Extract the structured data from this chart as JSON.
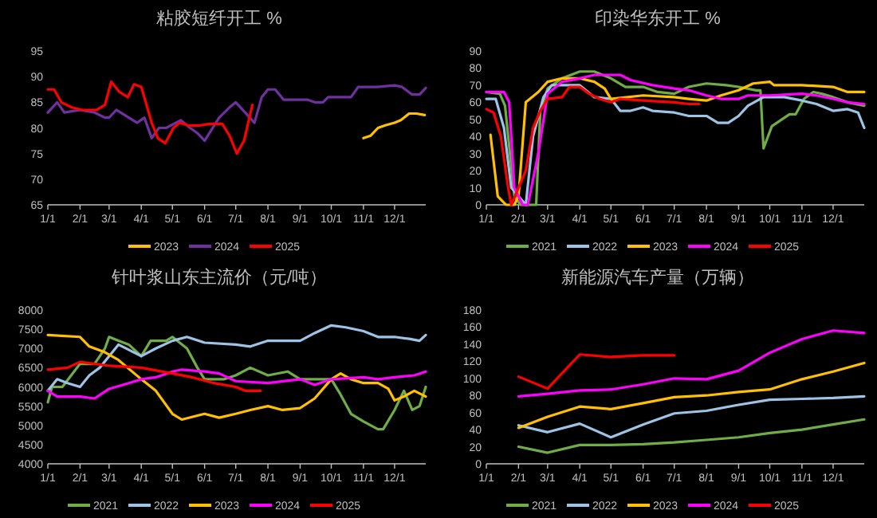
{
  "chart_data": [
    {
      "type": "line",
      "title": "粘胶短纤开工 %",
      "legend": "bottom",
      "xlim": [
        "--01-01",
        "--12-31"
      ],
      "xticks": [
        {
          "value": "--01-01",
          "label": "1/1"
        },
        {
          "value": "--02-01",
          "label": "2/1"
        },
        {
          "value": "--03-01",
          "label": "3/1"
        },
        {
          "value": "--04-01",
          "label": "4/1"
        },
        {
          "value": "--05-01",
          "label": "5/1"
        },
        {
          "value": "--06-01",
          "label": "6/1"
        },
        {
          "value": "--07-01",
          "label": "7/1"
        },
        {
          "value": "--08-01",
          "label": "8/1"
        },
        {
          "value": "--09-01",
          "label": "9/1"
        },
        {
          "value": "--10-01",
          "label": "10/1"
        },
        {
          "value": "--11-01",
          "label": "11/1"
        },
        {
          "value": "--12-01",
          "label": "12/1"
        }
      ],
      "ylim": [
        65,
        95
      ],
      "yticks": [
        65,
        70,
        75,
        80,
        85,
        90,
        95
      ],
      "series": [
        {
          "name": "2023",
          "color": "#ffc000",
          "x": [
            "--11-01",
            "--11-08",
            "--11-15",
            "--11-22",
            "--12-01",
            "--12-07",
            "--12-15",
            "--12-22",
            "--12-30"
          ],
          "values": [
            78,
            78.5,
            80,
            80.5,
            81,
            81.5,
            82.8,
            82.8,
            82.5
          ]
        },
        {
          "name": "2024",
          "color": "#7030a0",
          "x": [
            "--01-01",
            "--01-10",
            "--01-17",
            "--02-01",
            "--02-15",
            "--02-25",
            "--03-01",
            "--03-08",
            "--03-20",
            "--03-28",
            "--04-04",
            "--04-11",
            "--04-18",
            "--04-25",
            "--05-09",
            "--05-18",
            "--05-25",
            "--06-01",
            "--06-15",
            "--06-25",
            "--07-01",
            "--07-10",
            "--07-19",
            "--07-26",
            "--08-01",
            "--08-08",
            "--08-16",
            "--09-01",
            "--09-08",
            "--09-15",
            "--09-23",
            "--09-28",
            "--10-05",
            "--10-20",
            "--10-27",
            "--11-14",
            "--12-01",
            "--12-08",
            "--12-18",
            "--12-25",
            "--12-31"
          ],
          "values": [
            83,
            85,
            83,
            83.5,
            83,
            82,
            82,
            83.5,
            82,
            81,
            82,
            78,
            80,
            80,
            81.5,
            80,
            79,
            77.5,
            82,
            84,
            85,
            83,
            81,
            86,
            87.5,
            87.5,
            85.5,
            85.5,
            85.5,
            85,
            85,
            86,
            86,
            86,
            88,
            88,
            88.3,
            88,
            86.5,
            86.5,
            87.8
          ]
        },
        {
          "name": "2025",
          "color": "#ff0000",
          "x": [
            "--01-01",
            "--01-07",
            "--01-14",
            "--01-24",
            "--02-03",
            "--02-17",
            "--02-25",
            "--03-03",
            "--03-11",
            "--03-19",
            "--03-25",
            "--04-01",
            "--04-11",
            "--04-17",
            "--04-24",
            "--05-02",
            "--05-08",
            "--05-16",
            "--05-28",
            "--06-06",
            "--06-18",
            "--06-25",
            "--07-02",
            "--07-09",
            "--07-17"
          ],
          "values": [
            87.5,
            87.5,
            85,
            84,
            83.5,
            83.5,
            84.5,
            89,
            87,
            86,
            88.5,
            88,
            81,
            78,
            77,
            80,
            81,
            80.5,
            80.5,
            80.8,
            80.8,
            78.5,
            75,
            77.5,
            84.5
          ]
        }
      ]
    },
    {
      "type": "line",
      "title": "印染华东开工 %",
      "legend": "bottom",
      "xlim": [
        "--01-01",
        "--12-31"
      ],
      "xticks": [
        {
          "value": "--01-01",
          "label": "1/1"
        },
        {
          "value": "--02-01",
          "label": "2/1"
        },
        {
          "value": "--03-01",
          "label": "3/1"
        },
        {
          "value": "--04-01",
          "label": "4/1"
        },
        {
          "value": "--05-01",
          "label": "5/1"
        },
        {
          "value": "--06-01",
          "label": "6/1"
        },
        {
          "value": "--07-01",
          "label": "7/1"
        },
        {
          "value": "--08-01",
          "label": "8/1"
        },
        {
          "value": "--09-01",
          "label": "9/1"
        },
        {
          "value": "--10-01",
          "label": "10/1"
        },
        {
          "value": "--11-01",
          "label": "11/1"
        },
        {
          "value": "--12-01",
          "label": "12/1"
        }
      ],
      "ylim": [
        0,
        90
      ],
      "yticks": [
        0,
        10,
        20,
        30,
        40,
        50,
        60,
        70,
        80,
        90
      ],
      "series": [
        {
          "name": "2021",
          "color": "#70ad47",
          "x": [
            "--01-01",
            "--01-14",
            "--01-19",
            "--01-28",
            "--02-03",
            "--02-18",
            "--02-22",
            "--03-01",
            "--03-15",
            "--04-01",
            "--04-15",
            "--05-01",
            "--05-15",
            "--06-01",
            "--06-15",
            "--07-01",
            "--07-15",
            "--08-01",
            "--08-20",
            "--09-01",
            "--09-18",
            "--09-22",
            "--09-25",
            "--10-03",
            "--10-20",
            "--10-26",
            "--11-03",
            "--11-12",
            "--11-20",
            "--12-01",
            "--12-15",
            "--12-31"
          ],
          "values": [
            66,
            65,
            58,
            5,
            0,
            0,
            55,
            68,
            74,
            78,
            78,
            74,
            69,
            69,
            66,
            65,
            69,
            71,
            70,
            69,
            67,
            67,
            33,
            46,
            53,
            53,
            62,
            66,
            65,
            63,
            60,
            58
          ]
        },
        {
          "name": "2022",
          "color": "#9dc3e6",
          "x": [
            "--01-01",
            "--01-10",
            "--01-18",
            "--01-25",
            "--02-01",
            "--02-08",
            "--02-15",
            "--02-25",
            "--03-05",
            "--04-01",
            "--04-15",
            "--05-01",
            "--05-10",
            "--05-20",
            "--06-01",
            "--06-10",
            "--07-01",
            "--07-15",
            "--08-01",
            "--08-12",
            "--08-22",
            "--09-01",
            "--09-10",
            "--09-25",
            "--10-15",
            "--11-01",
            "--11-15",
            "--12-01",
            "--12-15",
            "--12-25",
            "--12-31"
          ],
          "values": [
            62,
            62,
            45,
            10,
            5,
            0,
            40,
            63,
            70,
            70,
            63,
            62,
            55,
            55,
            57,
            55,
            54,
            52,
            52,
            48,
            48,
            52,
            58,
            63,
            63,
            61,
            59,
            55,
            56,
            54,
            45
          ]
        },
        {
          "name": "2023",
          "color": "#ffc000",
          "x": [
            "--01-05",
            "--01-12",
            "--01-20",
            "--01-28",
            "--02-01",
            "--02-08",
            "--02-20",
            "--03-01",
            "--03-15",
            "--04-01",
            "--04-15",
            "--04-25",
            "--05-01",
            "--06-01",
            "--07-01",
            "--07-15",
            "--08-01",
            "--08-15",
            "--09-01",
            "--09-15",
            "--10-01",
            "--10-05",
            "--11-01",
            "--12-01",
            "--12-15",
            "--12-31"
          ],
          "values": [
            41,
            5,
            0,
            0,
            5,
            60,
            66,
            72,
            74,
            74,
            72,
            68,
            62,
            64,
            63,
            62,
            61,
            64,
            67,
            71,
            72,
            70,
            70,
            69,
            66,
            66
          ]
        },
        {
          "name": "2024",
          "color": "#ff00ff",
          "x": [
            "--01-01",
            "--01-18",
            "--01-23",
            "--01-28",
            "--02-05",
            "--02-10",
            "--02-20",
            "--03-01",
            "--03-15",
            "--04-01",
            "--04-15",
            "--05-01",
            "--05-10",
            "--05-20",
            "--06-10",
            "--07-01",
            "--07-15",
            "--08-01",
            "--08-15",
            "--09-01",
            "--09-10",
            "--10-01",
            "--11-01",
            "--11-15",
            "--12-01",
            "--12-15",
            "--12-31"
          ],
          "values": [
            66,
            66,
            60,
            10,
            0,
            0,
            30,
            65,
            72,
            74,
            76,
            76,
            76,
            73,
            70,
            68,
            67,
            64,
            62,
            62,
            64,
            64,
            65,
            64,
            62,
            60,
            59
          ]
        },
        {
          "name": "2025",
          "color": "#ff0000",
          "x": [
            "--01-01",
            "--01-08",
            "--01-15",
            "--01-22",
            "--01-25",
            "--02-01",
            "--02-08",
            "--02-15",
            "--02-22",
            "--03-01",
            "--03-15",
            "--03-22",
            "--04-01",
            "--04-10",
            "--04-20",
            "--05-01",
            "--05-10",
            "--06-01",
            "--07-01",
            "--07-15",
            "--07-25"
          ],
          "values": [
            56,
            54,
            40,
            10,
            0,
            10,
            20,
            45,
            55,
            62,
            63,
            69,
            69,
            65,
            62,
            60,
            62,
            61,
            60,
            59,
            59
          ]
        }
      ]
    },
    {
      "type": "line",
      "title": "针叶浆山东主流价（元/吨）",
      "legend": "bottom",
      "xlim": [
        "--01-01",
        "--12-31"
      ],
      "xticks": [
        {
          "value": "--01-01",
          "label": "1/1"
        },
        {
          "value": "--02-01",
          "label": "2/1"
        },
        {
          "value": "--03-01",
          "label": "3/1"
        },
        {
          "value": "--04-01",
          "label": "4/1"
        },
        {
          "value": "--05-01",
          "label": "5/1"
        },
        {
          "value": "--06-01",
          "label": "6/1"
        },
        {
          "value": "--07-01",
          "label": "7/1"
        },
        {
          "value": "--08-01",
          "label": "8/1"
        },
        {
          "value": "--09-01",
          "label": "9/1"
        },
        {
          "value": "--10-01",
          "label": "10/1"
        },
        {
          "value": "--11-01",
          "label": "11/1"
        },
        {
          "value": "--12-01",
          "label": "12/1"
        }
      ],
      "ylim": [
        4000,
        8000
      ],
      "yticks": [
        4000,
        4500,
        5000,
        5500,
        6000,
        6500,
        7000,
        7500,
        8000
      ],
      "series": [
        {
          "name": "2021",
          "color": "#70ad47",
          "x": [
            "--01-01",
            "--01-05",
            "--01-15",
            "--02-01",
            "--02-15",
            "--02-25",
            "--03-01",
            "--03-10",
            "--03-20",
            "--04-01",
            "--04-10",
            "--04-25",
            "--05-01",
            "--05-15",
            "--05-25",
            "--06-01",
            "--06-20",
            "--07-01",
            "--07-15",
            "--08-01",
            "--08-20",
            "--09-01",
            "--09-15",
            "--10-01",
            "--10-10",
            "--10-20",
            "--11-01",
            "--11-15",
            "--11-20",
            "--12-01",
            "--12-10",
            "--12-18",
            "--12-25",
            "--12-31"
          ],
          "values": [
            5600,
            6000,
            6000,
            6600,
            6600,
            7000,
            7300,
            7200,
            7100,
            6800,
            7200,
            7200,
            7300,
            7000,
            6500,
            6200,
            6200,
            6300,
            6500,
            6300,
            6400,
            6200,
            6200,
            6200,
            5800,
            5300,
            5100,
            4900,
            4900,
            5400,
            5900,
            5400,
            5500,
            6000
          ]
        },
        {
          "name": "2022",
          "color": "#9dc3e6",
          "x": [
            "--01-01",
            "--01-10",
            "--01-20",
            "--02-01",
            "--02-10",
            "--02-20",
            "--03-01",
            "--03-10",
            "--04-01",
            "--04-15",
            "--05-01",
            "--05-15",
            "--06-01",
            "--07-01",
            "--07-15",
            "--08-01",
            "--09-01",
            "--09-15",
            "--10-01",
            "--10-15",
            "--11-01",
            "--11-15",
            "--12-01",
            "--12-15",
            "--12-25",
            "--12-31"
          ],
          "values": [
            5900,
            6200,
            6100,
            6000,
            6300,
            6500,
            6800,
            7100,
            6800,
            7000,
            7200,
            7300,
            7150,
            7100,
            7050,
            7200,
            7200,
            7400,
            7600,
            7550,
            7450,
            7300,
            7300,
            7250,
            7200,
            7350
          ]
        },
        {
          "name": "2023",
          "color": "#ffc000",
          "x": [
            "--01-01",
            "--02-01",
            "--02-10",
            "--02-25",
            "--03-10",
            "--04-01",
            "--04-15",
            "--05-01",
            "--05-10",
            "--06-01",
            "--06-15",
            "--07-01",
            "--07-15",
            "--08-01",
            "--08-15",
            "--09-01",
            "--09-15",
            "--10-01",
            "--10-10",
            "--10-20",
            "--11-01",
            "--11-15",
            "--11-25",
            "--12-01",
            "--12-10",
            "--12-20",
            "--12-31"
          ],
          "values": [
            7350,
            7300,
            7050,
            6900,
            6700,
            6200,
            5900,
            5300,
            5150,
            5300,
            5200,
            5300,
            5400,
            5500,
            5400,
            5450,
            5700,
            6200,
            6350,
            6200,
            6100,
            6100,
            5950,
            5650,
            5750,
            5900,
            5750
          ]
        },
        {
          "name": "2024",
          "color": "#ff00ff",
          "x": [
            "--01-01",
            "--01-10",
            "--02-01",
            "--02-15",
            "--03-01",
            "--03-20",
            "--04-01",
            "--04-15",
            "--05-01",
            "--05-10",
            "--06-01",
            "--06-15",
            "--07-01",
            "--08-01",
            "--09-01",
            "--09-15",
            "--10-01",
            "--11-01",
            "--11-15",
            "--12-01",
            "--12-20",
            "--12-31"
          ],
          "values": [
            5900,
            5750,
            5750,
            5700,
            5950,
            6100,
            6200,
            6250,
            6400,
            6450,
            6400,
            6350,
            6150,
            6100,
            6200,
            6050,
            6200,
            6250,
            6200,
            6250,
            6300,
            6400
          ]
        },
        {
          "name": "2025",
          "color": "#ff0000",
          "x": [
            "--01-01",
            "--01-20",
            "--02-01",
            "--03-01",
            "--04-01",
            "--05-01",
            "--05-20",
            "--06-10",
            "--07-01",
            "--07-10",
            "--07-25"
          ],
          "values": [
            6450,
            6500,
            6650,
            6550,
            6500,
            6350,
            6250,
            6100,
            6000,
            5900,
            5900
          ]
        }
      ]
    },
    {
      "type": "line",
      "title": "新能源汽车产量（万辆）",
      "legend": "bottom",
      "xlim": [
        "--01-01",
        "--12-31"
      ],
      "xticks": [
        {
          "value": "--01-01",
          "label": "1/1"
        },
        {
          "value": "--02-01",
          "label": "2/1"
        },
        {
          "value": "--03-01",
          "label": "3/1"
        },
        {
          "value": "--04-01",
          "label": "4/1"
        },
        {
          "value": "--05-01",
          "label": "5/1"
        },
        {
          "value": "--06-01",
          "label": "6/1"
        },
        {
          "value": "--07-01",
          "label": "7/1"
        },
        {
          "value": "--08-01",
          "label": "8/1"
        },
        {
          "value": "--09-01",
          "label": "9/1"
        },
        {
          "value": "--10-01",
          "label": "10/1"
        },
        {
          "value": "--11-01",
          "label": "11/1"
        },
        {
          "value": "--12-01",
          "label": "12/1"
        }
      ],
      "ylim": [
        0,
        180
      ],
      "yticks": [
        0,
        20,
        40,
        60,
        80,
        100,
        120,
        140,
        160,
        180
      ],
      "series": [
        {
          "name": "2021",
          "color": "#70ad47",
          "x": [
            "--02-01",
            "--03-01",
            "--04-01",
            "--05-01",
            "--06-01",
            "--07-01",
            "--08-01",
            "--09-01",
            "--10-01",
            "--11-01",
            "--12-01",
            "--12-31"
          ],
          "values": [
            20,
            13,
            22,
            22,
            23,
            25,
            28,
            31,
            36,
            40,
            46,
            52
          ]
        },
        {
          "name": "2022",
          "color": "#9dc3e6",
          "x": [
            "--02-01",
            "--03-01",
            "--04-01",
            "--05-01",
            "--06-01",
            "--07-01",
            "--08-01",
            "--09-01",
            "--10-01",
            "--11-01",
            "--12-01",
            "--12-31"
          ],
          "values": [
            45,
            37,
            47,
            31,
            46,
            59,
            62,
            69,
            75,
            76,
            77,
            79
          ]
        },
        {
          "name": "2023",
          "color": "#ffc000",
          "x": [
            "--02-01",
            "--03-01",
            "--04-01",
            "--05-01",
            "--06-01",
            "--07-01",
            "--08-01",
            "--09-01",
            "--10-01",
            "--11-01",
            "--12-01",
            "--12-31"
          ],
          "values": [
            42,
            55,
            67,
            64,
            71,
            78,
            80,
            84,
            87,
            99,
            108,
            118
          ]
        },
        {
          "name": "2024",
          "color": "#ff00ff",
          "x": [
            "--02-01",
            "--03-01",
            "--04-01",
            "--05-01",
            "--06-01",
            "--07-01",
            "--08-01",
            "--09-01",
            "--10-01",
            "--11-01",
            "--12-01",
            "--12-31"
          ],
          "values": [
            79,
            82,
            86,
            87,
            93,
            100,
            99,
            109,
            130,
            146,
            156,
            153
          ]
        },
        {
          "name": "2025",
          "color": "#ff0000",
          "x": [
            "--02-01",
            "--03-01",
            "--04-01",
            "--05-01",
            "--06-01",
            "--07-01"
          ],
          "values": [
            102,
            88,
            128,
            125,
            127,
            127
          ]
        }
      ]
    }
  ]
}
